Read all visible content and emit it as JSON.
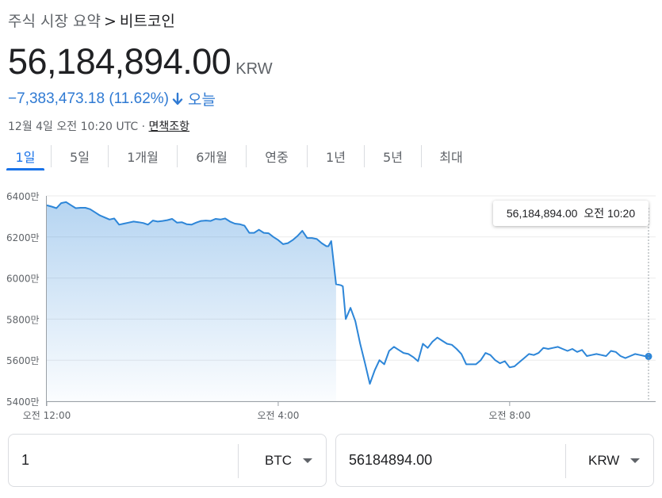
{
  "breadcrumb": {
    "parent": "주식 시장 요약",
    "separator": ">",
    "current": "비트코인"
  },
  "price": {
    "value": "56,184,894.00",
    "currency": "KRW"
  },
  "change": {
    "amount": "−7,383,473.18",
    "percent": "(11.62%)",
    "direction": "down",
    "period": "오늘",
    "color": "#2f7ad3"
  },
  "timestamp": {
    "text": "12월 4일 오전 10:20 UTC",
    "separator": "·",
    "disclaimer": "면책조항"
  },
  "tabs": [
    {
      "label": "1일",
      "active": true
    },
    {
      "label": "5일",
      "active": false
    },
    {
      "label": "1개월",
      "active": false
    },
    {
      "label": "6개월",
      "active": false
    },
    {
      "label": "연중",
      "active": false
    },
    {
      "label": "1년",
      "active": false
    },
    {
      "label": "5년",
      "active": false
    },
    {
      "label": "최대",
      "active": false
    }
  ],
  "tooltip": {
    "price": "56,184,894.00",
    "time": "오전 10:20"
  },
  "chart_data": {
    "type": "area",
    "ylim": [
      54000000,
      64000000
    ],
    "yticks": [
      {
        "value": 64000000,
        "label": "6400만"
      },
      {
        "value": 62000000,
        "label": "6200만"
      },
      {
        "value": 60000000,
        "label": "6000만"
      },
      {
        "value": 58000000,
        "label": "5800만"
      },
      {
        "value": 56000000,
        "label": "5600만"
      },
      {
        "value": 54000000,
        "label": "5400만"
      }
    ],
    "xlim": [
      0,
      624
    ],
    "xticks": [
      {
        "value": 0,
        "label": "오전 12:00"
      },
      {
        "value": 240,
        "label": "오전 4:00"
      },
      {
        "value": 480,
        "label": "오전 8:00"
      }
    ],
    "line_color": "#2d86d8",
    "series": [
      {
        "x": [
          0,
          5,
          10,
          15,
          20,
          25,
          30,
          35,
          40,
          45,
          50,
          55,
          60,
          65,
          70,
          75,
          80,
          85,
          90,
          95,
          100,
          105,
          110,
          115,
          120,
          125,
          130,
          135,
          140,
          145,
          150,
          155,
          160,
          165,
          170,
          175,
          180,
          185,
          190,
          195,
          200,
          205,
          210,
          215,
          220,
          225,
          230,
          235,
          240,
          245,
          250,
          255,
          260,
          265,
          270,
          275,
          280,
          285,
          290,
          292,
          295,
          300,
          305,
          307,
          310,
          315,
          320,
          325,
          330,
          335,
          340,
          345,
          350,
          355,
          360,
          365,
          370,
          375,
          380,
          385,
          390,
          395,
          400,
          405,
          410,
          415,
          420,
          425,
          430,
          435,
          440,
          445,
          450,
          455,
          460,
          465,
          470,
          475,
          480,
          485,
          490,
          495,
          500,
          505,
          510,
          515,
          520,
          525,
          530,
          535,
          540,
          545,
          550,
          555,
          560,
          565,
          570,
          575,
          580,
          585,
          590,
          595,
          600,
          605,
          610,
          615,
          620,
          624
        ],
        "y": [
          63540000,
          63480000,
          63400000,
          63650000,
          63700000,
          63550000,
          63400000,
          63420000,
          63420000,
          63350000,
          63200000,
          63050000,
          62950000,
          62850000,
          62900000,
          62600000,
          62650000,
          62700000,
          62750000,
          62720000,
          62680000,
          62600000,
          62800000,
          62750000,
          62780000,
          62820000,
          62880000,
          62700000,
          62720000,
          62620000,
          62600000,
          62700000,
          62780000,
          62800000,
          62780000,
          62880000,
          62850000,
          62900000,
          62750000,
          62650000,
          62620000,
          62550000,
          62200000,
          62200000,
          62350000,
          62200000,
          62180000,
          62000000,
          61850000,
          61650000,
          61700000,
          61850000,
          62050000,
          62300000,
          61950000,
          61950000,
          61900000,
          61700000,
          61550000,
          61550000,
          61800000,
          59700000,
          59650000,
          59600000,
          58000000,
          58550000,
          57900000,
          56800000,
          55850000,
          54850000,
          55500000,
          56000000,
          55800000,
          56450000,
          56650000,
          56500000,
          56350000,
          56300000,
          56150000,
          55950000,
          56800000,
          56600000,
          56900000,
          57100000,
          56950000,
          56800000,
          56750000,
          56550000,
          56300000,
          55800000,
          55800000,
          55800000,
          56000000,
          56350000,
          56250000,
          56000000,
          55850000,
          55950000,
          55650000,
          55700000,
          55900000,
          56100000,
          56300000,
          56250000,
          56350000,
          56600000,
          56550000,
          56600000,
          56650000,
          56550000,
          56450000,
          56550000,
          56400000,
          56500000,
          56200000,
          56250000,
          56300000,
          56250000,
          56200000,
          56450000,
          56400000,
          56200000,
          56100000,
          56200000,
          56300000,
          56250000,
          56200000,
          56184894
        ]
      }
    ]
  },
  "converter": {
    "from": {
      "value": "1",
      "currency": "BTC"
    },
    "to": {
      "value": "56184894.00",
      "currency": "KRW"
    }
  }
}
